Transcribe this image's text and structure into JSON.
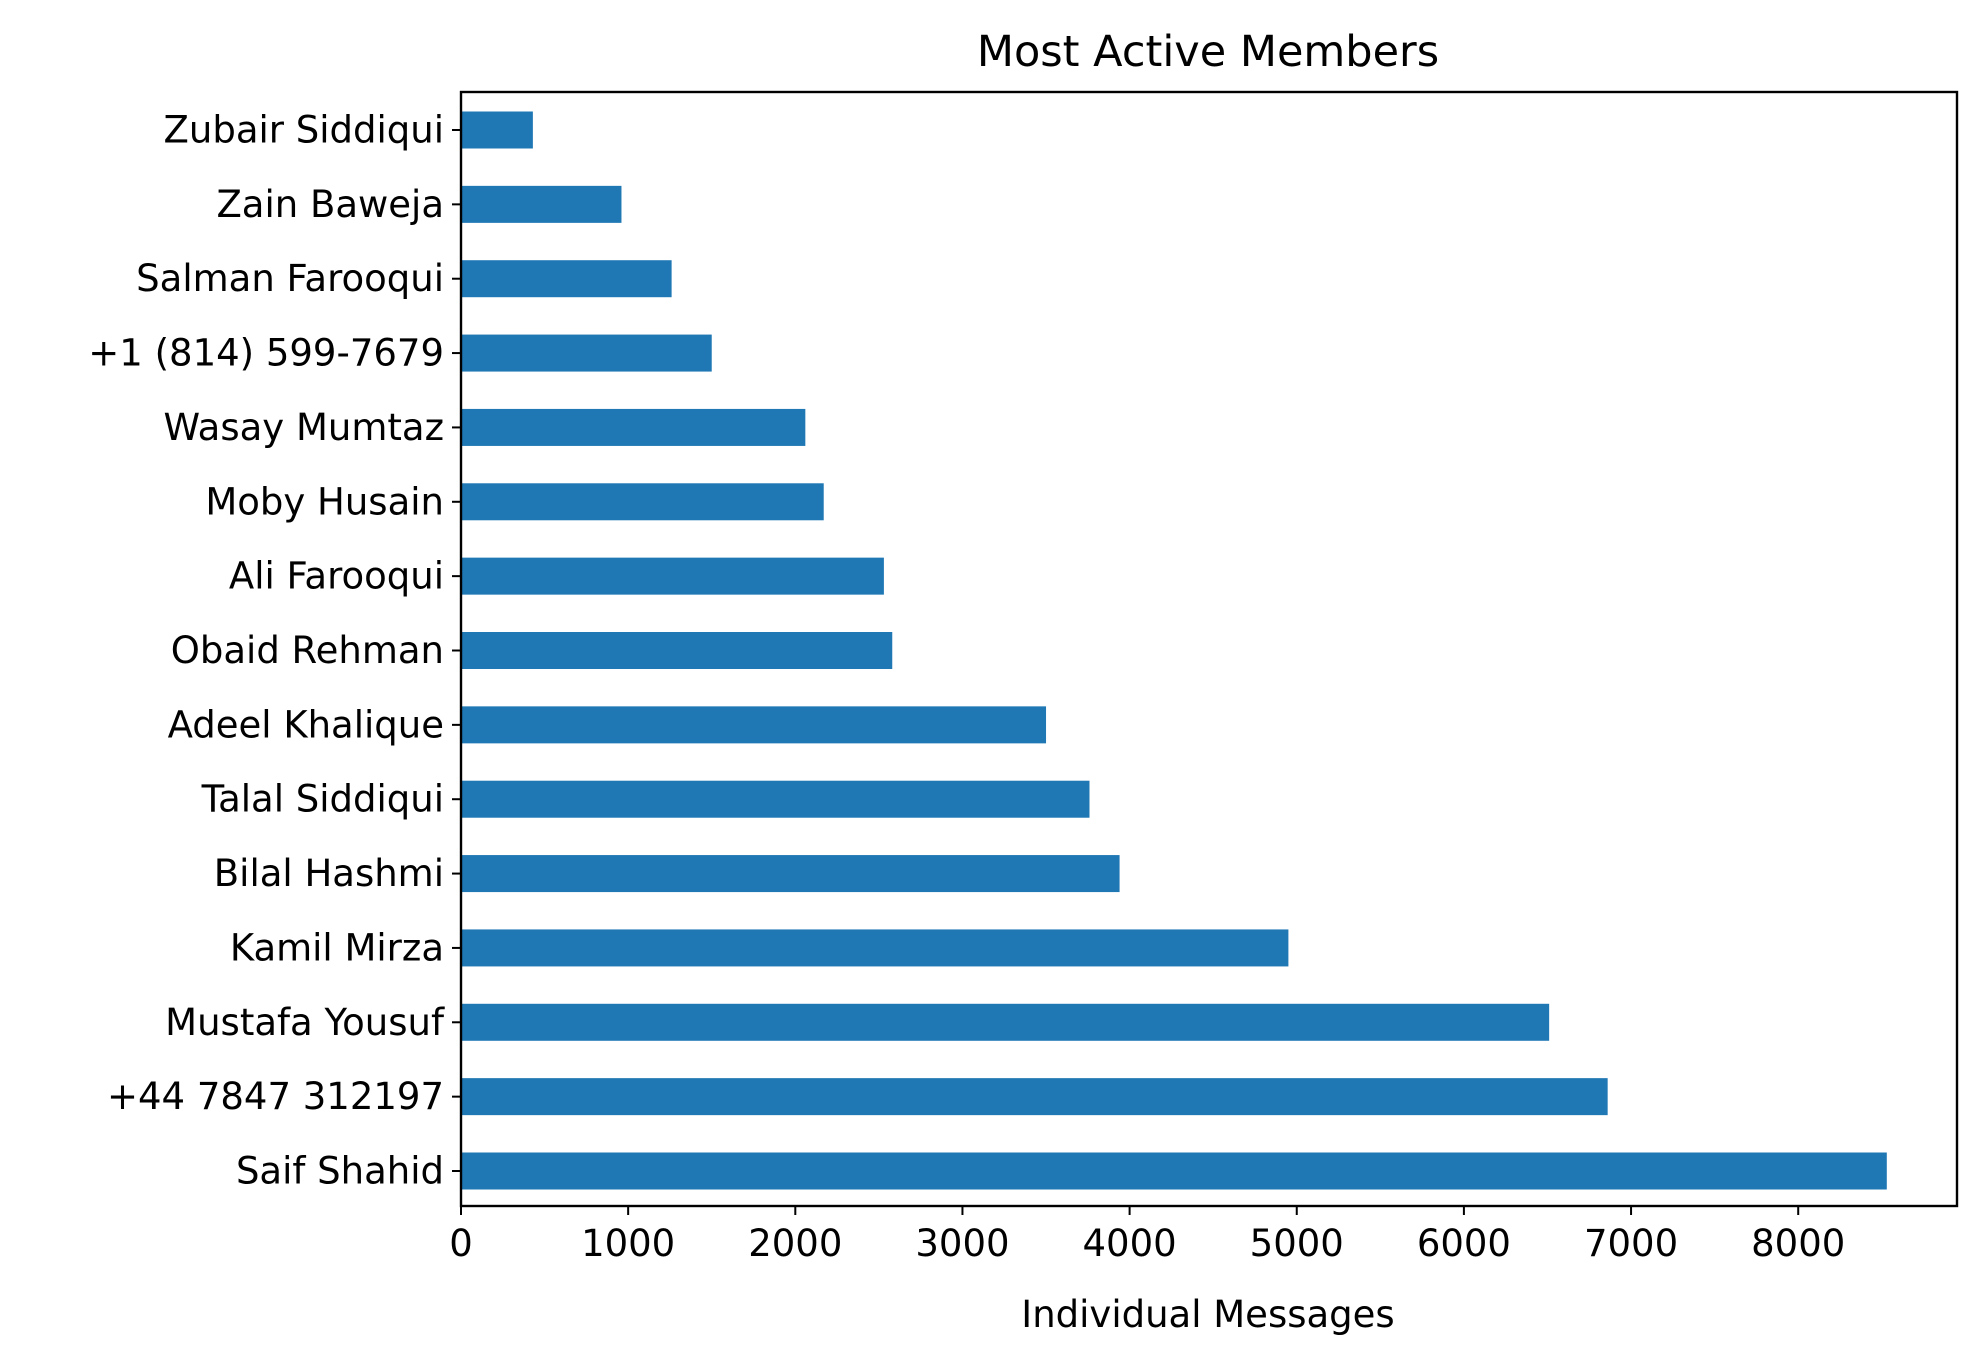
{
  "chart_data": {
    "type": "bar",
    "orientation": "horizontal",
    "title": "Most Active Members",
    "xlabel": "Individual Messages",
    "ylabel": "",
    "xlim": [
      0,
      8950
    ],
    "xticks": [
      0,
      1000,
      2000,
      3000,
      4000,
      5000,
      6000,
      7000,
      8000
    ],
    "grid": false,
    "color": "#1f77b4",
    "categories": [
      "Saif Shahid",
      "+44 7847 312197",
      "Mustafa Yousuf",
      "Kamil Mirza",
      "Bilal Hashmi",
      "Talal Siddiqui",
      "Adeel Khalique",
      "Obaid Rehman",
      "Ali Farooqui",
      "Moby Husain",
      "Wasay Mumtaz",
      "+1 (814) 599-7679",
      "Salman Farooqui",
      "Zain Baweja",
      "Zubair Siddiqui"
    ],
    "values": [
      8530,
      6860,
      6510,
      4950,
      3940,
      3760,
      3500,
      2580,
      2530,
      2170,
      2060,
      1500,
      1260,
      960,
      430
    ]
  }
}
